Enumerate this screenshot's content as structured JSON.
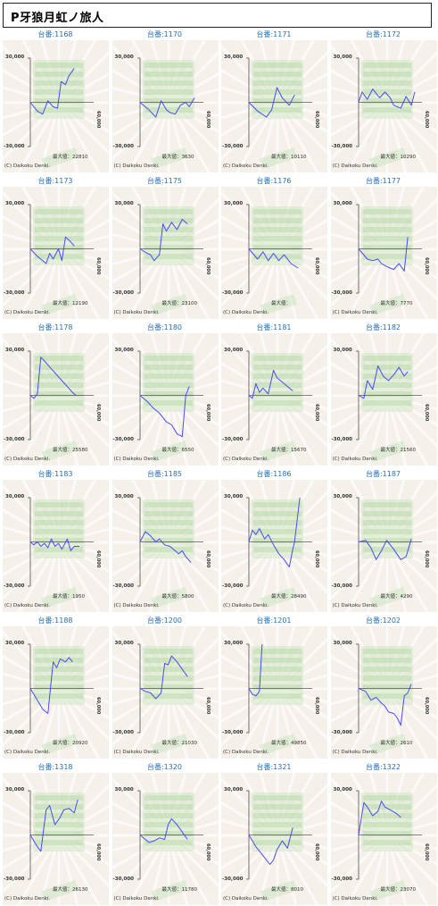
{
  "title": "P牙狼月虹ノ旅人",
  "copyright": "(C) Daikoku Denki.",
  "y_top_label": "30,000",
  "y_bottom_label": "-30,000",
  "x_right_label": "60,000",
  "max_label_prefix": "最大値：",
  "colors": {
    "line": "#4a4af5",
    "bg": "#f5f0ea",
    "grid_green": "#cfe6c4",
    "label_blue": "#2a6fb0"
  },
  "machines": [
    {
      "label": "台番:1168",
      "max": "22810",
      "points": [
        [
          0,
          0
        ],
        [
          8,
          -6
        ],
        [
          14,
          -8
        ],
        [
          20,
          1
        ],
        [
          26,
          -3
        ],
        [
          31,
          -4
        ],
        [
          35,
          14
        ],
        [
          40,
          12
        ],
        [
          44,
          18
        ],
        [
          50,
          23
        ]
      ]
    },
    {
      "label": "台番:1170",
      "max": "3630",
      "points": [
        [
          0,
          0
        ],
        [
          10,
          -5
        ],
        [
          18,
          -10
        ],
        [
          24,
          1
        ],
        [
          30,
          -5
        ],
        [
          34,
          -7
        ],
        [
          40,
          -8
        ],
        [
          46,
          -2
        ],
        [
          52,
          0
        ],
        [
          56,
          -3
        ],
        [
          62,
          3
        ]
      ]
    },
    {
      "label": "台番:1171",
      "max": "10110",
      "points": [
        [
          0,
          0
        ],
        [
          10,
          -6
        ],
        [
          20,
          -10
        ],
        [
          26,
          -5
        ],
        [
          32,
          10
        ],
        [
          38,
          3
        ],
        [
          46,
          -2
        ],
        [
          52,
          5
        ]
      ]
    },
    {
      "label": "台番:1172",
      "max": "10290",
      "points": [
        [
          0,
          0
        ],
        [
          4,
          7
        ],
        [
          10,
          2
        ],
        [
          16,
          9
        ],
        [
          24,
          3
        ],
        [
          30,
          7
        ],
        [
          36,
          3
        ],
        [
          40,
          -2
        ],
        [
          48,
          -4
        ],
        [
          54,
          4
        ],
        [
          60,
          -2
        ],
        [
          64,
          7
        ]
      ]
    },
    {
      "label": "台番:1173",
      "max": "12190",
      "points": [
        [
          0,
          0
        ],
        [
          8,
          -5
        ],
        [
          14,
          -8
        ],
        [
          18,
          -10
        ],
        [
          22,
          -3
        ],
        [
          26,
          -7
        ],
        [
          32,
          0
        ],
        [
          36,
          -8
        ],
        [
          40,
          8
        ],
        [
          44,
          6
        ],
        [
          50,
          2
        ]
      ]
    },
    {
      "label": "台番:1175",
      "max": "23100",
      "points": [
        [
          0,
          0
        ],
        [
          8,
          -3
        ],
        [
          12,
          -4
        ],
        [
          16,
          -8
        ],
        [
          22,
          -4
        ],
        [
          26,
          17
        ],
        [
          30,
          12
        ],
        [
          36,
          18
        ],
        [
          42,
          13
        ],
        [
          48,
          20
        ],
        [
          54,
          17
        ]
      ]
    },
    {
      "label": "台番:1176",
      "max": "",
      "points": [
        [
          0,
          0
        ],
        [
          10,
          -7
        ],
        [
          16,
          -2
        ],
        [
          22,
          -8
        ],
        [
          28,
          -3
        ],
        [
          34,
          -8
        ],
        [
          40,
          -4
        ],
        [
          48,
          -10
        ],
        [
          56,
          -13
        ]
      ]
    },
    {
      "label": "台番:1177",
      "max": "7770",
      "points": [
        [
          0,
          0
        ],
        [
          10,
          -7
        ],
        [
          16,
          -8
        ],
        [
          22,
          -7
        ],
        [
          26,
          -10
        ],
        [
          32,
          -12
        ],
        [
          36,
          -13
        ],
        [
          40,
          -14
        ],
        [
          46,
          -10
        ],
        [
          52,
          -15
        ],
        [
          56,
          8
        ]
      ]
    },
    {
      "label": "台番:1178",
      "max": "25580",
      "points": [
        [
          0,
          0
        ],
        [
          4,
          -2
        ],
        [
          8,
          1
        ],
        [
          12,
          26
        ],
        [
          18,
          22
        ],
        [
          24,
          18
        ],
        [
          30,
          14
        ],
        [
          36,
          10
        ],
        [
          42,
          6
        ],
        [
          48,
          2
        ],
        [
          52,
          0
        ]
      ]
    },
    {
      "label": "台番:1180",
      "max": "6550",
      "points": [
        [
          0,
          0
        ],
        [
          8,
          -4
        ],
        [
          14,
          -8
        ],
        [
          22,
          -12
        ],
        [
          30,
          -18
        ],
        [
          36,
          -20
        ],
        [
          42,
          -26
        ],
        [
          48,
          -28
        ],
        [
          52,
          0
        ],
        [
          56,
          6
        ]
      ]
    },
    {
      "label": "台番:1181",
      "max": "15670",
      "points": [
        [
          0,
          0
        ],
        [
          4,
          -2
        ],
        [
          8,
          8
        ],
        [
          12,
          2
        ],
        [
          16,
          5
        ],
        [
          22,
          1
        ],
        [
          28,
          17
        ],
        [
          32,
          12
        ],
        [
          38,
          9
        ],
        [
          44,
          6
        ],
        [
          50,
          3
        ]
      ]
    },
    {
      "label": "台番:1182",
      "max": "21560",
      "points": [
        [
          0,
          0
        ],
        [
          6,
          -2
        ],
        [
          10,
          10
        ],
        [
          16,
          4
        ],
        [
          22,
          20
        ],
        [
          28,
          13
        ],
        [
          34,
          10
        ],
        [
          40,
          14
        ],
        [
          46,
          19
        ],
        [
          52,
          13
        ],
        [
          56,
          16
        ]
      ]
    },
    {
      "label": "台番:1183",
      "max": "1950",
      "points": [
        [
          0,
          0
        ],
        [
          4,
          -2
        ],
        [
          8,
          0
        ],
        [
          12,
          -3
        ],
        [
          16,
          -1
        ],
        [
          20,
          -4
        ],
        [
          24,
          2
        ],
        [
          28,
          -3
        ],
        [
          32,
          -1
        ],
        [
          36,
          -5
        ],
        [
          42,
          2
        ],
        [
          46,
          -6
        ],
        [
          50,
          -3
        ],
        [
          56,
          -3
        ]
      ]
    },
    {
      "label": "台番:1185",
      "max": "5800",
      "points": [
        [
          0,
          0
        ],
        [
          6,
          7
        ],
        [
          12,
          4
        ],
        [
          18,
          0
        ],
        [
          22,
          2
        ],
        [
          28,
          -2
        ],
        [
          34,
          -3
        ],
        [
          38,
          -5
        ],
        [
          44,
          -8
        ],
        [
          48,
          -6
        ],
        [
          52,
          -10
        ],
        [
          58,
          -14
        ]
      ]
    },
    {
      "label": "台番:1186",
      "max": "28490",
      "points": [
        [
          0,
          0
        ],
        [
          4,
          8
        ],
        [
          8,
          5
        ],
        [
          12,
          9
        ],
        [
          18,
          2
        ],
        [
          22,
          5
        ],
        [
          28,
          -2
        ],
        [
          34,
          -8
        ],
        [
          40,
          -12
        ],
        [
          46,
          -17
        ],
        [
          50,
          -5
        ],
        [
          52,
          0
        ],
        [
          58,
          30
        ]
      ]
    },
    {
      "label": "台番:1187",
      "max": "4290",
      "points": [
        [
          0,
          0
        ],
        [
          8,
          1
        ],
        [
          14,
          -4
        ],
        [
          20,
          -12
        ],
        [
          26,
          -6
        ],
        [
          32,
          1
        ],
        [
          40,
          -5
        ],
        [
          48,
          -12
        ],
        [
          54,
          -10
        ],
        [
          60,
          2
        ]
      ]
    },
    {
      "label": "台番:1188",
      "max": "20920",
      "points": [
        [
          0,
          0
        ],
        [
          8,
          -8
        ],
        [
          14,
          -14
        ],
        [
          20,
          -17
        ],
        [
          26,
          18
        ],
        [
          30,
          14
        ],
        [
          34,
          20
        ],
        [
          40,
          18
        ],
        [
          44,
          21
        ],
        [
          48,
          18
        ]
      ]
    },
    {
      "label": "台番:1200",
      "max": "21030",
      "points": [
        [
          0,
          0
        ],
        [
          6,
          -2
        ],
        [
          12,
          -3
        ],
        [
          18,
          -7
        ],
        [
          24,
          -3
        ],
        [
          28,
          17
        ],
        [
          32,
          16
        ],
        [
          36,
          22
        ],
        [
          42,
          18
        ],
        [
          48,
          13
        ],
        [
          54,
          8
        ]
      ]
    },
    {
      "label": "台番:1201",
      "max": "49850",
      "points": [
        [
          0,
          0
        ],
        [
          4,
          -4
        ],
        [
          8,
          -5
        ],
        [
          12,
          -2
        ],
        [
          15,
          30
        ]
      ]
    },
    {
      "label": "台番:1202",
      "max": "2610",
      "points": [
        [
          0,
          0
        ],
        [
          8,
          -2
        ],
        [
          14,
          -8
        ],
        [
          20,
          -6
        ],
        [
          26,
          -10
        ],
        [
          30,
          -12
        ],
        [
          34,
          -16
        ],
        [
          40,
          -17
        ],
        [
          44,
          -20
        ],
        [
          48,
          -25
        ],
        [
          52,
          -5
        ],
        [
          56,
          -3
        ],
        [
          60,
          3
        ]
      ]
    },
    {
      "label": "台番:1318",
      "max": "26130",
      "points": [
        [
          0,
          0
        ],
        [
          4,
          -4
        ],
        [
          8,
          -8
        ],
        [
          12,
          -11
        ],
        [
          18,
          17
        ],
        [
          22,
          20
        ],
        [
          28,
          7
        ],
        [
          34,
          12
        ],
        [
          38,
          17
        ],
        [
          44,
          18
        ],
        [
          50,
          15
        ],
        [
          54,
          24
        ]
      ]
    },
    {
      "label": "台番:1320",
      "max": "11780",
      "points": [
        [
          0,
          0
        ],
        [
          4,
          -2
        ],
        [
          10,
          -5
        ],
        [
          16,
          -4
        ],
        [
          22,
          -2
        ],
        [
          28,
          -3
        ],
        [
          32,
          7
        ],
        [
          36,
          11
        ],
        [
          42,
          7
        ],
        [
          48,
          2
        ],
        [
          54,
          -3
        ]
      ]
    },
    {
      "label": "台番:1321",
      "max": "8010",
      "points": [
        [
          0,
          0
        ],
        [
          8,
          -8
        ],
        [
          16,
          -14
        ],
        [
          24,
          -20
        ],
        [
          28,
          -17
        ],
        [
          32,
          -10
        ],
        [
          38,
          -4
        ],
        [
          44,
          -9
        ],
        [
          50,
          5
        ]
      ]
    },
    {
      "label": "台番:1322",
      "max": "23070",
      "points": [
        [
          0,
          0
        ],
        [
          6,
          22
        ],
        [
          10,
          19
        ],
        [
          16,
          13
        ],
        [
          22,
          16
        ],
        [
          26,
          23
        ],
        [
          30,
          19
        ],
        [
          36,
          17
        ],
        [
          42,
          15
        ],
        [
          48,
          12
        ]
      ]
    }
  ]
}
